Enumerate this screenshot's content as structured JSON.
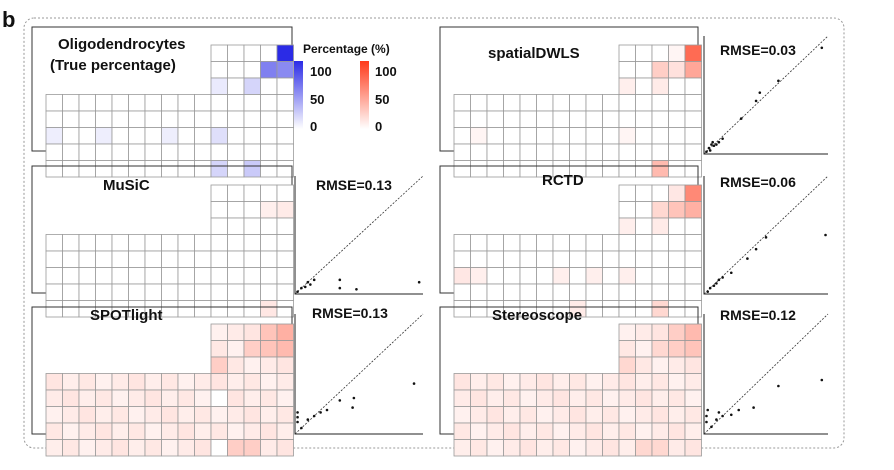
{
  "figure": {
    "panel_letter": "b",
    "legend": {
      "title": "Percentage (%)",
      "truth_scale": {
        "color": "#2b2be6",
        "tick_labels": [
          "100",
          "50",
          "0"
        ]
      },
      "estimate_scale": {
        "color": "#ff3a1a",
        "tick_labels": [
          "100",
          "50",
          "0"
        ]
      }
    }
  },
  "chart_data": [
    {
      "type": "heatmap",
      "title": "Oligodendrocytes\n(True percentage)",
      "color": "#2b2be6",
      "grid_shape": "slide with 10-column lower block (5 rows) and 5-column upper block (3 extra rows)",
      "nonzero_cells": [
        {
          "row": 0,
          "col": 14,
          "value": 100
        },
        {
          "row": 1,
          "col": 13,
          "value": 60
        },
        {
          "row": 1,
          "col": 14,
          "value": 55
        },
        {
          "row": 2,
          "col": 10,
          "value": 10
        },
        {
          "row": 2,
          "col": 12,
          "value": 20
        },
        {
          "row": 3,
          "col": 0,
          "value": 8
        },
        {
          "row": 3,
          "col": 3,
          "value": 8
        },
        {
          "row": 3,
          "col": 7,
          "value": 8
        },
        {
          "row": 3,
          "col": 10,
          "value": 15
        },
        {
          "row": 4,
          "col": 10,
          "value": 20
        },
        {
          "row": 4,
          "col": 12,
          "value": 25
        }
      ]
    },
    {
      "type": "heatmap",
      "title": "spatialDWLS",
      "color": "#ff3a1a",
      "nonzero_cells": [
        {
          "row": 0,
          "col": 13,
          "value": 5
        },
        {
          "row": 0,
          "col": 14,
          "value": 75
        },
        {
          "row": 1,
          "col": 12,
          "value": 25
        },
        {
          "row": 1,
          "col": 13,
          "value": 15
        },
        {
          "row": 1,
          "col": 14,
          "value": 45
        },
        {
          "row": 2,
          "col": 10,
          "value": 8
        },
        {
          "row": 2,
          "col": 12,
          "value": 10
        },
        {
          "row": 3,
          "col": 1,
          "value": 5
        },
        {
          "row": 3,
          "col": 10,
          "value": 5
        },
        {
          "row": 4,
          "col": 12,
          "value": 35
        }
      ],
      "scatter": {
        "rmse_label": "RMSE=0.03",
        "rmse": 0.03,
        "xlim": [
          0,
          1
        ],
        "ylim": [
          0,
          1
        ],
        "points": [
          [
            0.02,
            0.02
          ],
          [
            0.04,
            0.05
          ],
          [
            0.06,
            0.08
          ],
          [
            0.05,
            0.03
          ],
          [
            0.08,
            0.07
          ],
          [
            0.07,
            0.1
          ],
          [
            0.1,
            0.08
          ],
          [
            0.12,
            0.1
          ],
          [
            0.15,
            0.13
          ],
          [
            0.3,
            0.3
          ],
          [
            0.42,
            0.45
          ],
          [
            0.45,
            0.52
          ],
          [
            0.6,
            0.62
          ],
          [
            0.95,
            0.9
          ]
        ]
      }
    },
    {
      "type": "heatmap",
      "title": "MuSiC",
      "color": "#ff3a1a",
      "nonzero_cells": [
        {
          "row": 1,
          "col": 13,
          "value": 8
        },
        {
          "row": 1,
          "col": 14,
          "value": 10
        },
        {
          "row": 4,
          "col": 13,
          "value": 12
        }
      ],
      "scatter": {
        "rmse_label": "RMSE=0.13",
        "rmse": 0.13,
        "xlim": [
          0,
          1
        ],
        "ylim": [
          0,
          1
        ],
        "points": [
          [
            0.02,
            0.02
          ],
          [
            0.05,
            0.05
          ],
          [
            0.08,
            0.06
          ],
          [
            0.1,
            0.1
          ],
          [
            0.12,
            0.08
          ],
          [
            0.15,
            0.12
          ],
          [
            0.35,
            0.12
          ],
          [
            0.35,
            0.05
          ],
          [
            0.48,
            0.04
          ],
          [
            0.97,
            0.1
          ]
        ]
      }
    },
    {
      "type": "heatmap",
      "title": "RCTD",
      "color": "#ff3a1a",
      "nonzero_cells": [
        {
          "row": 0,
          "col": 13,
          "value": 12
        },
        {
          "row": 0,
          "col": 14,
          "value": 60
        },
        {
          "row": 1,
          "col": 12,
          "value": 20
        },
        {
          "row": 1,
          "col": 13,
          "value": 30
        },
        {
          "row": 1,
          "col": 14,
          "value": 40
        },
        {
          "row": 2,
          "col": 10,
          "value": 8
        },
        {
          "row": 2,
          "col": 12,
          "value": 10
        },
        {
          "row": 3,
          "col": 0,
          "value": 12
        },
        {
          "row": 3,
          "col": 1,
          "value": 8
        },
        {
          "row": 3,
          "col": 6,
          "value": 8
        },
        {
          "row": 3,
          "col": 8,
          "value": 8
        },
        {
          "row": 3,
          "col": 10,
          "value": 8
        },
        {
          "row": 4,
          "col": 7,
          "value": 10
        },
        {
          "row": 4,
          "col": 12,
          "value": 20
        }
      ],
      "scatter": {
        "rmse_label": "RMSE=0.06",
        "rmse": 0.06,
        "xlim": [
          0,
          1
        ],
        "ylim": [
          0,
          1
        ],
        "points": [
          [
            0.03,
            0.02
          ],
          [
            0.05,
            0.05
          ],
          [
            0.08,
            0.07
          ],
          [
            0.1,
            0.09
          ],
          [
            0.12,
            0.12
          ],
          [
            0.15,
            0.14
          ],
          [
            0.22,
            0.18
          ],
          [
            0.35,
            0.3
          ],
          [
            0.42,
            0.38
          ],
          [
            0.5,
            0.48
          ],
          [
            0.98,
            0.5
          ]
        ]
      }
    },
    {
      "type": "heatmap",
      "title": "SPOTlight",
      "color": "#ff3a1a",
      "base_value": 12,
      "nonzero_cells": [
        {
          "row": 0,
          "col": 13,
          "value": 30
        },
        {
          "row": 0,
          "col": 14,
          "value": 40
        },
        {
          "row": 1,
          "col": 12,
          "value": 25
        },
        {
          "row": 1,
          "col": 13,
          "value": 30
        },
        {
          "row": 1,
          "col": 14,
          "value": 35
        },
        {
          "row": 2,
          "col": 10,
          "value": 25
        },
        {
          "row": 4,
          "col": 11,
          "value": 25
        },
        {
          "row": 4,
          "col": 12,
          "value": 25
        }
      ],
      "zero_cells": [
        {
          "row": 2,
          "col": 4
        },
        {
          "row": 4,
          "col": 10
        }
      ],
      "scatter": {
        "rmse_label": "RMSE=0.13",
        "rmse": 0.13,
        "xlim": [
          0,
          1
        ],
        "ylim": [
          0,
          1
        ],
        "points": [
          [
            0.02,
            0.1
          ],
          [
            0.02,
            0.14
          ],
          [
            0.02,
            0.18
          ],
          [
            0.05,
            0.05
          ],
          [
            0.1,
            0.12
          ],
          [
            0.15,
            0.15
          ],
          [
            0.2,
            0.18
          ],
          [
            0.25,
            0.2
          ],
          [
            0.35,
            0.28
          ],
          [
            0.45,
            0.22
          ],
          [
            0.46,
            0.3
          ],
          [
            0.93,
            0.42
          ]
        ]
      }
    },
    {
      "type": "heatmap",
      "title": "Stereoscope",
      "color": "#ff3a1a",
      "base_value": 12,
      "nonzero_cells": [
        {
          "row": 0,
          "col": 13,
          "value": 25
        },
        {
          "row": 0,
          "col": 14,
          "value": 35
        },
        {
          "row": 1,
          "col": 12,
          "value": 20
        },
        {
          "row": 1,
          "col": 13,
          "value": 25
        },
        {
          "row": 1,
          "col": 14,
          "value": 30
        },
        {
          "row": 2,
          "col": 10,
          "value": 20
        },
        {
          "row": 4,
          "col": 11,
          "value": 20
        },
        {
          "row": 4,
          "col": 12,
          "value": 20
        }
      ],
      "scatter": {
        "rmse_label": "RMSE=0.12",
        "rmse": 0.12,
        "xlim": [
          0,
          1
        ],
        "ylim": [
          0,
          1
        ],
        "points": [
          [
            0.02,
            0.1
          ],
          [
            0.02,
            0.15
          ],
          [
            0.03,
            0.2
          ],
          [
            0.06,
            0.06
          ],
          [
            0.1,
            0.12
          ],
          [
            0.12,
            0.18
          ],
          [
            0.15,
            0.15
          ],
          [
            0.22,
            0.16
          ],
          [
            0.28,
            0.2
          ],
          [
            0.4,
            0.22
          ],
          [
            0.6,
            0.4
          ],
          [
            0.95,
            0.45
          ]
        ]
      }
    }
  ]
}
